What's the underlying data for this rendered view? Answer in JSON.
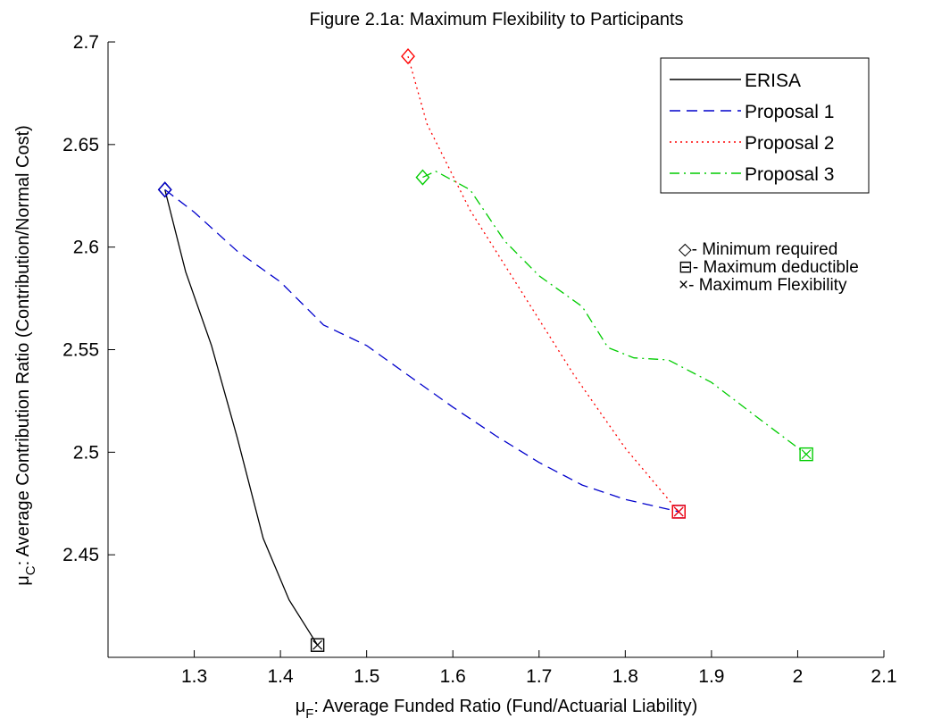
{
  "chart_data": {
    "type": "line",
    "title": "Figure 2.1a:  Maximum Flexibility to Participants",
    "xlabel": {
      "symbol": "μ",
      "subscript": "F",
      "text": ": Average Funded Ratio (Fund/Actuarial Liability)"
    },
    "ylabel": {
      "symbol": "μ",
      "subscript": "C",
      "text": ": Average Contribution Ratio (Contribution/Normal Cost)"
    },
    "xlim": [
      1.2,
      2.1
    ],
    "ylim": [
      2.4,
      2.7
    ],
    "xticks": [
      "1.3",
      "1.4",
      "1.5",
      "1.6",
      "1.7",
      "1.8",
      "1.9",
      "2",
      "2.1"
    ],
    "yticks": [
      "2.45",
      "2.5",
      "2.55",
      "2.6",
      "2.65",
      "2.7"
    ],
    "grid": false,
    "legend_position": "top-right",
    "series": [
      {
        "name": "ERISA",
        "color": "#000000",
        "dash": "solid",
        "points": [
          [
            1.266,
            2.628
          ],
          [
            1.29,
            2.588
          ],
          [
            1.32,
            2.552
          ],
          [
            1.35,
            2.507
          ],
          [
            1.38,
            2.458
          ],
          [
            1.41,
            2.428
          ],
          [
            1.443,
            2.406
          ]
        ],
        "marker_start": "diamond",
        "marker_end": "square"
      },
      {
        "name": "Proposal 1",
        "color": "#0000cc",
        "dash": "dashed",
        "points": [
          [
            1.266,
            2.628
          ],
          [
            1.3,
            2.617
          ],
          [
            1.35,
            2.598
          ],
          [
            1.4,
            2.583
          ],
          [
            1.45,
            2.562
          ],
          [
            1.5,
            2.552
          ],
          [
            1.55,
            2.537
          ],
          [
            1.6,
            2.522
          ],
          [
            1.65,
            2.508
          ],
          [
            1.7,
            2.495
          ],
          [
            1.75,
            2.484
          ],
          [
            1.8,
            2.477
          ],
          [
            1.862,
            2.471
          ]
        ],
        "marker_start": "diamond",
        "marker_end": "square-x"
      },
      {
        "name": "Proposal 2",
        "color": "#ff0000",
        "dash": "dotted",
        "points": [
          [
            1.548,
            2.693
          ],
          [
            1.57,
            2.66
          ],
          [
            1.62,
            2.618
          ],
          [
            1.68,
            2.578
          ],
          [
            1.74,
            2.538
          ],
          [
            1.8,
            2.502
          ],
          [
            1.862,
            2.471
          ]
        ],
        "marker_start": "diamond",
        "marker_end": "square-x"
      },
      {
        "name": "Proposal 3",
        "color": "#00cc00",
        "dash": "dashdot",
        "points": [
          [
            1.565,
            2.634
          ],
          [
            1.58,
            2.637
          ],
          [
            1.62,
            2.628
          ],
          [
            1.66,
            2.603
          ],
          [
            1.7,
            2.586
          ],
          [
            1.75,
            2.571
          ],
          [
            1.78,
            2.551
          ],
          [
            1.81,
            2.546
          ],
          [
            1.85,
            2.545
          ],
          [
            1.9,
            2.534
          ],
          [
            1.95,
            2.518
          ],
          [
            2.01,
            2.499
          ]
        ],
        "marker_start": "diamond",
        "marker_end": "square-x"
      }
    ],
    "marker_legend": [
      {
        "glyph": "◇",
        "text": "- Minimum required"
      },
      {
        "glyph": "⊟",
        "text": "- Maximum deductible"
      },
      {
        "glyph": "×",
        "text": "- Maximum Flexibility"
      }
    ]
  }
}
